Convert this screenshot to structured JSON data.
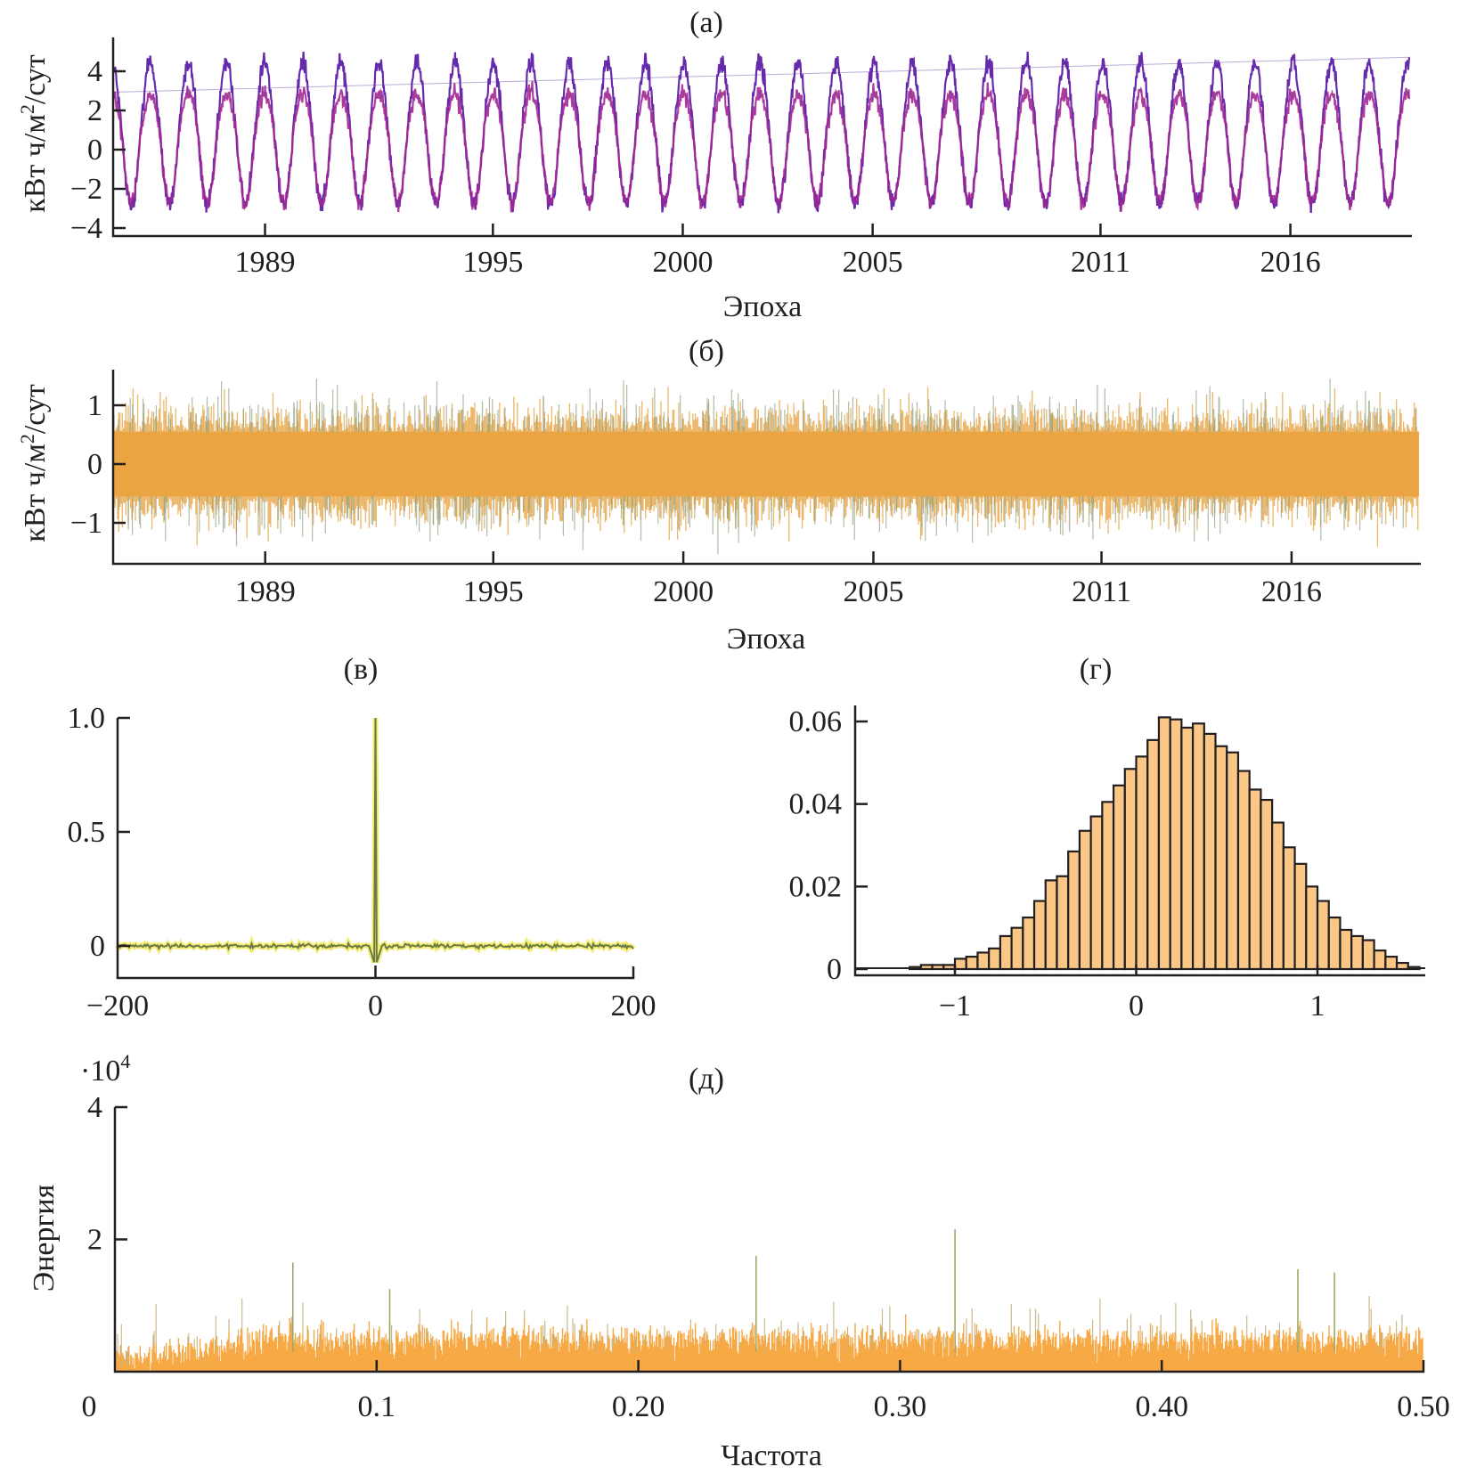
{
  "chart_data": [
    {
      "id": "a",
      "type": "line",
      "title": "(а)",
      "xlabel": "Эпоха",
      "ylabel": "кВт ч/м²/сут",
      "ylabel_base": "кВт ч/м",
      "ylabel_sup": "2",
      "ylabel_tail": "/сут",
      "xlim": [
        1985.0,
        2019.2
      ],
      "ylim": [
        -4.2,
        5.3
      ],
      "xticks": [
        1989,
        1995,
        2000,
        2005,
        2011,
        2016
      ],
      "xtick_labels": [
        "1989",
        "1995",
        "2000",
        "2005",
        "2011",
        "2016"
      ],
      "yticks": [
        4,
        2,
        0,
        -2,
        -4
      ],
      "ytick_labels": [
        "4",
        "2",
        "0",
        "−2",
        "−4"
      ],
      "description": "Seasonal daily solar radiation series, ~34 annual cycles with peaks ≈ 4–5 and troughs ≈ −3",
      "series": [
        {
          "name": "series",
          "cycles": 34,
          "peak_mean": 4.5,
          "trough_mean": -2.8,
          "color": "#6a2bb0",
          "color2": "#c0268e"
        }
      ]
    },
    {
      "id": "б",
      "type": "line",
      "title": "(б)",
      "xlabel": "Эпоха",
      "ylabel": "кВт ч/м²/сут",
      "ylabel_base": "кВт ч/м",
      "ylabel_sup": "2",
      "ylabel_tail": "/сут",
      "xlim": [
        1985.0,
        2019.4
      ],
      "ylim": [
        -1.7,
        1.6
      ],
      "xticks": [
        1989,
        1995,
        2000,
        2005,
        2011,
        2016
      ],
      "xtick_labels": [
        "1989",
        "1995",
        "2000",
        "2005",
        "2011",
        "2016"
      ],
      "yticks": [
        1,
        0,
        -1
      ],
      "ytick_labels": [
        "1",
        "0",
        "−1"
      ],
      "description": "Residual noise series centered at 0, band roughly ±0.6 with spikes to ±1.4",
      "series": [
        {
          "name": "residual",
          "band": 0.55,
          "max_spike": 1.45,
          "color": "#f5a030"
        }
      ]
    },
    {
      "id": "в",
      "type": "line",
      "title": "(в)",
      "xlim": [
        -200,
        200
      ],
      "ylim": [
        -0.1,
        1.0
      ],
      "xticks": [
        -200,
        0,
        200
      ],
      "xtick_labels": [
        "−200",
        "0",
        "200"
      ],
      "yticks": [
        1.0,
        0.5,
        0
      ],
      "ytick_labels": [
        "1.0",
        "0.5",
        "0"
      ],
      "description": "Autocorrelation function: 1.0 at lag 0, near 0 elsewhere, small dip ≈ −0.08 around lag 0",
      "series": [
        {
          "name": "acf",
          "peak_lag": 0,
          "peak_value": 1.0,
          "dip_value": -0.09,
          "color": "#d8d020"
        }
      ]
    },
    {
      "id": "г",
      "type": "bar",
      "title": "(г)",
      "xlim": [
        -1.6,
        1.55
      ],
      "ylim": [
        0,
        0.062
      ],
      "xticks": [
        -1,
        0,
        1
      ],
      "xtick_labels": [
        "−1",
        "0",
        "1"
      ],
      "yticks": [
        0.06,
        0.04,
        0.02,
        0
      ],
      "ytick_labels": [
        "0.06",
        "0.04",
        "0.02",
        "0"
      ],
      "bin_width": 0.0625,
      "bin_start": -1.25,
      "values": [
        0.0005,
        0.001,
        0.001,
        0.001,
        0.0025,
        0.003,
        0.004,
        0.005,
        0.008,
        0.01,
        0.0125,
        0.0165,
        0.0215,
        0.0225,
        0.0285,
        0.0335,
        0.037,
        0.0405,
        0.0445,
        0.0485,
        0.0515,
        0.0555,
        0.061,
        0.0605,
        0.0585,
        0.0595,
        0.057,
        0.054,
        0.0525,
        0.048,
        0.0435,
        0.041,
        0.0355,
        0.0295,
        0.0255,
        0.02,
        0.0165,
        0.0125,
        0.0095,
        0.008,
        0.007,
        0.0045,
        0.003,
        0.0015,
        0.0005
      ],
      "fill": "#fbc787",
      "edge": "#231f20"
    },
    {
      "id": "д",
      "type": "bar",
      "title": "(д)",
      "xlabel": "Частота",
      "ylabel": "Энергия",
      "scale_label": "·10",
      "scale_exp": "4",
      "xlim": [
        0,
        0.5
      ],
      "ylim": [
        0,
        40000
      ],
      "xticks": [
        0,
        0.1,
        0.2,
        0.3,
        0.4,
        0.5
      ],
      "xtick_labels": [
        "0",
        "0.1",
        "0.20",
        "0.30",
        "0.40",
        "0.50"
      ],
      "yticks": [
        4,
        2
      ],
      "ytick_labels": [
        "4",
        "2"
      ],
      "description": "Periodogram: energy rises from ~0 at low frequency to a noisy floor of ~3000–6000 with spikes up to ~21000 near 0.32",
      "peaks": [
        {
          "freq": 0.068,
          "energy": 16500
        },
        {
          "freq": 0.105,
          "energy": 12500
        },
        {
          "freq": 0.245,
          "energy": 17500
        },
        {
          "freq": 0.321,
          "energy": 21500
        },
        {
          "freq": 0.452,
          "energy": 15500
        },
        {
          "freq": 0.466,
          "energy": 15000
        }
      ],
      "color": "#f5a030"
    }
  ]
}
